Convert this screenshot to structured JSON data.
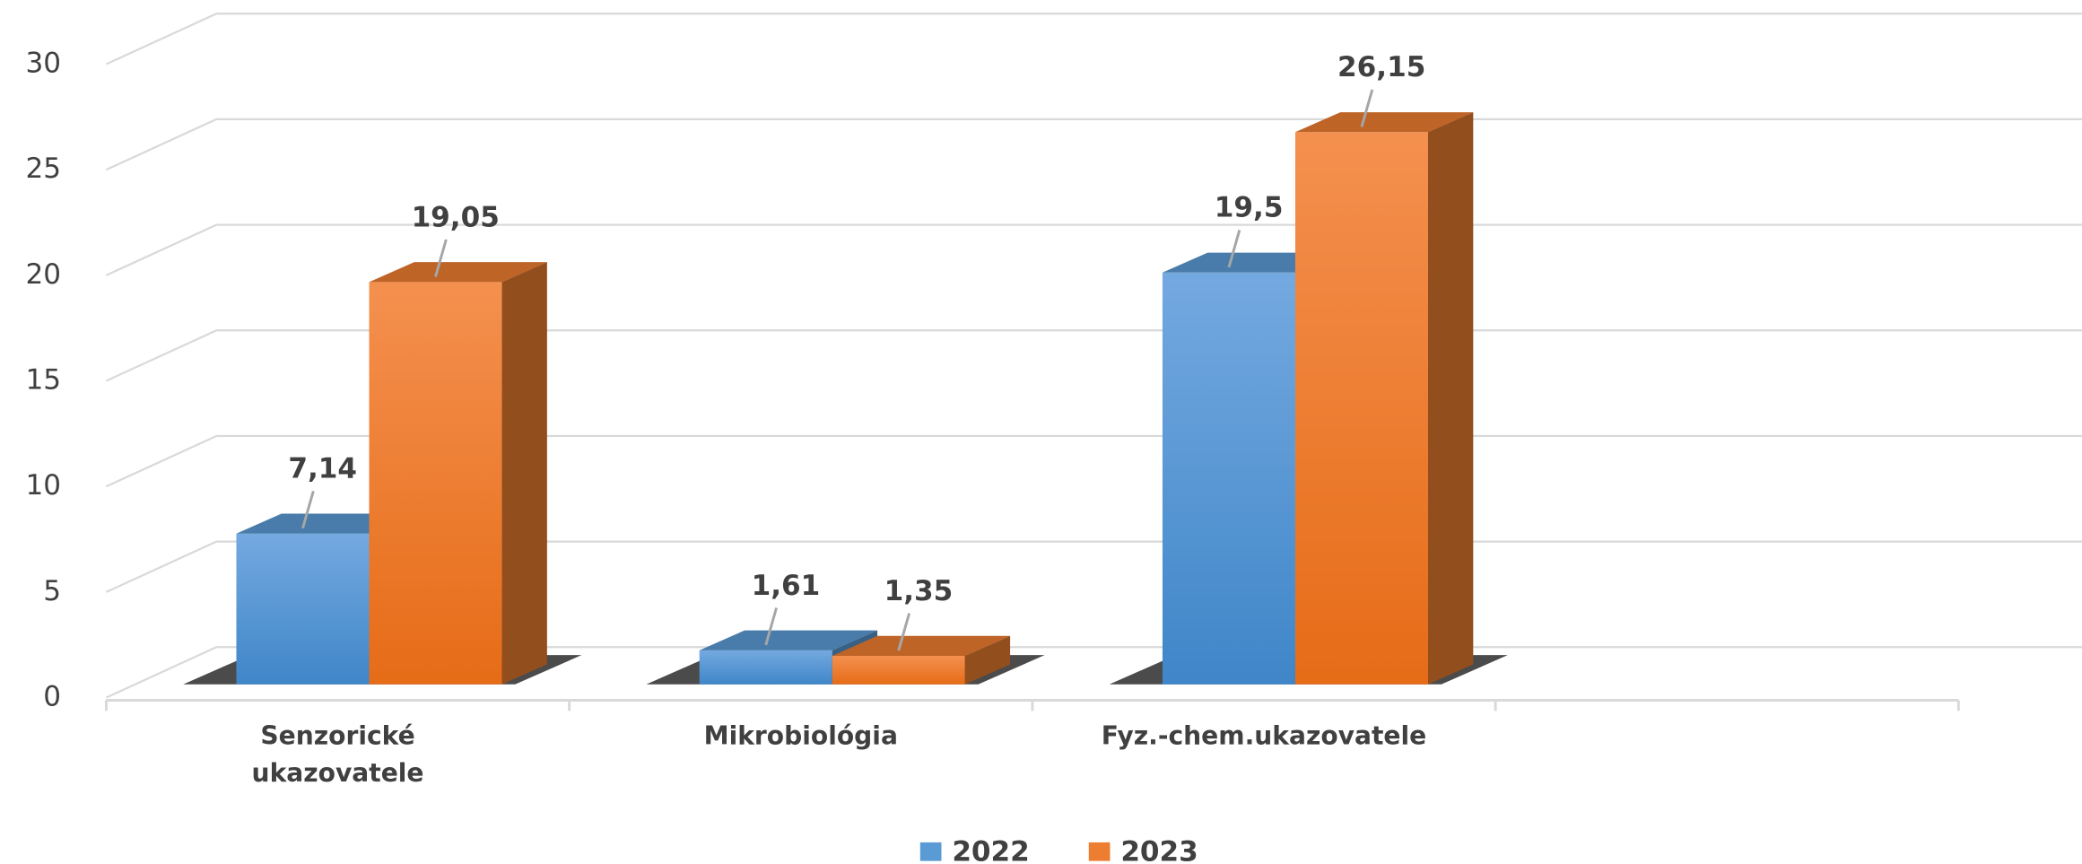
{
  "chart_data": {
    "type": "bar3d",
    "categories": [
      "Senzorické ukazovatele",
      "Mikrobiológia",
      "Fyz.-chem.ukazovatele",
      null
    ],
    "series": [
      {
        "name": "2022",
        "color": "#5b9bd5",
        "values": [
          7.14,
          1.61,
          19.5,
          null
        ],
        "value_labels": [
          "7,14",
          "1,61",
          "19,5",
          null
        ]
      },
      {
        "name": "2023",
        "color": "#ed7d31",
        "values": [
          19.05,
          1.35,
          26.15,
          null
        ],
        "value_labels": [
          "19,05",
          "1,35",
          "26,15",
          null
        ]
      }
    ],
    "ylim": [
      0,
      30
    ],
    "yticks": [
      0,
      5,
      10,
      15,
      20,
      25,
      30
    ],
    "grid": true,
    "legend": "bottom"
  }
}
